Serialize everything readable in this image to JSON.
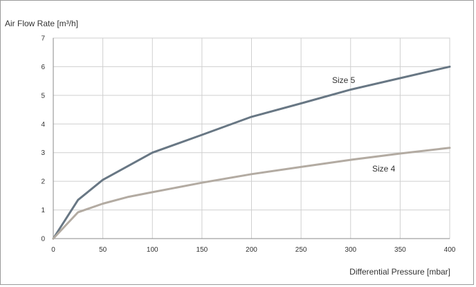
{
  "chart_data": {
    "type": "line",
    "title": "",
    "ylabel": "Air Flow Rate [m³/h]",
    "xlabel": "Differential Pressure [mbar]",
    "xlim": [
      0,
      400
    ],
    "ylim": [
      0,
      7
    ],
    "x_ticks": [
      "0",
      "50",
      "100",
      "150",
      "200",
      "250",
      "300",
      "350",
      "400"
    ],
    "y_ticks": [
      "0",
      "1",
      "2",
      "3",
      "4",
      "5",
      "6",
      "7"
    ],
    "grid": true,
    "series": [
      {
        "name": "Size 5",
        "color": "#687784",
        "x": [
          0,
          25,
          50,
          100,
          150,
          200,
          250,
          300,
          350,
          400
        ],
        "values": [
          0,
          1.35,
          2.05,
          3.0,
          3.62,
          4.25,
          4.72,
          5.2,
          5.6,
          6.0
        ]
      },
      {
        "name": "Size 4",
        "color": "#b3aba2",
        "x": [
          0,
          25,
          50,
          75,
          100,
          150,
          200,
          250,
          300,
          350,
          400
        ],
        "values": [
          0,
          0.92,
          1.22,
          1.45,
          1.62,
          1.95,
          2.25,
          2.5,
          2.75,
          2.97,
          3.17
        ]
      }
    ]
  }
}
